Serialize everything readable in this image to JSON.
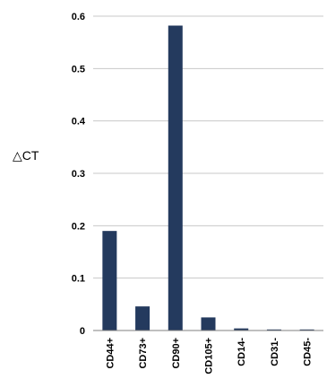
{
  "chart_data": {
    "type": "bar",
    "title": "",
    "xlabel": "",
    "ylabel": "△CT",
    "categories": [
      "CD44+",
      "CD73+",
      "CD90+",
      "CD105+",
      "CD14-",
      "CD31-",
      "CD45-"
    ],
    "values": [
      0.19,
      0.046,
      0.582,
      0.025,
      0.004,
      0.002,
      0.002
    ],
    "ylim": [
      0,
      0.6
    ],
    "yticks": [
      0,
      0.1,
      0.2,
      0.3,
      0.4,
      0.5,
      0.6
    ],
    "grid": "horizontal",
    "legend": "none",
    "bar_color": "#243a5e",
    "grid_color": "#c8c8c8"
  }
}
